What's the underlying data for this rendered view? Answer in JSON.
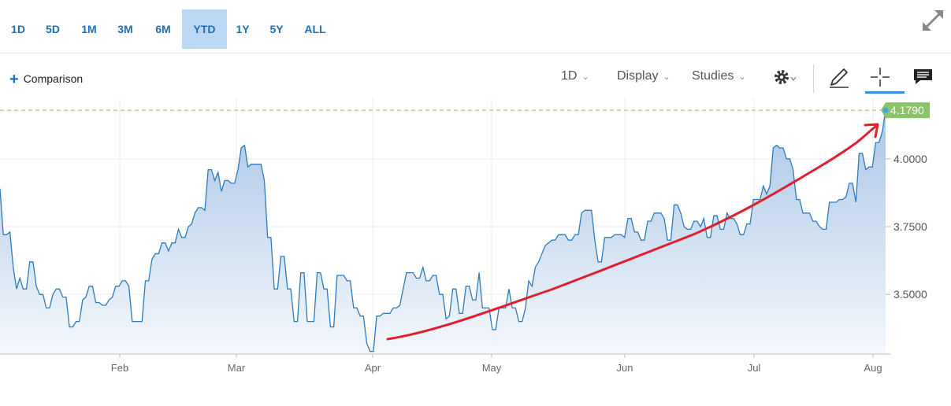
{
  "range_buttons": [
    {
      "label": "1D"
    },
    {
      "label": "5D"
    },
    {
      "label": "1M"
    },
    {
      "label": "3M"
    },
    {
      "label": "6M"
    },
    {
      "label": "YTD",
      "active": true
    },
    {
      "label": "1Y"
    },
    {
      "label": "5Y"
    },
    {
      "label": "ALL"
    }
  ],
  "toolbar": {
    "comparison_label": "Comparison",
    "interval_label": "1D",
    "display_label": "Display",
    "studies_label": "Studies"
  },
  "icons": {
    "expand": "expand-icon",
    "settings": "gear-icon",
    "draw": "pencil-icon",
    "crosshair": "crosshair-icon",
    "comments": "comment-icon"
  },
  "colors": {
    "accent": "#1f6fb2",
    "line": "#2f7ab8",
    "fill_top": "#a9c6e6",
    "fill_bottom": "#f4f8fc",
    "price_badge": "#8bc36b",
    "annotation": "#e0202e"
  },
  "chart_data": {
    "type": "area",
    "x_ticks": [
      "Feb",
      "Mar",
      "Apr",
      "May",
      "Jun",
      "Jul",
      "Aug"
    ],
    "y_ticks": [
      "4.0000",
      "3.7500",
      "3.5000"
    ],
    "ylim": [
      3.28,
      4.22
    ],
    "last_value_label": "4.1790",
    "last_value": 4.179,
    "series": [
      {
        "values": [
          3.89,
          3.72,
          3.72,
          3.73,
          3.6,
          3.52,
          3.56,
          3.52,
          3.52,
          3.62,
          3.62,
          3.53,
          3.5,
          3.5,
          3.45,
          3.45,
          3.5,
          3.52,
          3.52,
          3.49,
          3.49,
          3.38,
          3.38,
          3.4,
          3.4,
          3.48,
          3.49,
          3.53,
          3.53,
          3.47,
          3.47,
          3.46,
          3.46,
          3.48,
          3.49,
          3.53,
          3.53,
          3.55,
          3.55,
          3.53,
          3.4,
          3.4,
          3.4,
          3.4,
          3.55,
          3.55,
          3.63,
          3.65,
          3.65,
          3.69,
          3.69,
          3.66,
          3.69,
          3.69,
          3.74,
          3.71,
          3.71,
          3.75,
          3.76,
          3.8,
          3.82,
          3.82,
          3.81,
          3.96,
          3.96,
          3.92,
          3.95,
          3.88,
          3.92,
          3.92,
          3.91,
          3.91,
          3.96,
          4.04,
          4.05,
          3.97,
          3.98,
          3.98,
          3.98,
          3.98,
          3.92,
          3.71,
          3.71,
          3.52,
          3.52,
          3.64,
          3.64,
          3.52,
          3.52,
          3.4,
          3.4,
          3.58,
          3.58,
          3.4,
          3.4,
          3.4,
          3.58,
          3.58,
          3.52,
          3.52,
          3.38,
          3.38,
          3.57,
          3.57,
          3.57,
          3.55,
          3.55,
          3.45,
          3.45,
          3.42,
          3.42,
          3.32,
          3.29,
          3.29,
          3.42,
          3.42,
          3.43,
          3.43,
          3.43,
          3.45,
          3.45,
          3.46,
          3.52,
          3.58,
          3.58,
          3.58,
          3.56,
          3.56,
          3.6,
          3.55,
          3.55,
          3.57,
          3.57,
          3.5,
          3.5,
          3.41,
          3.42,
          3.52,
          3.52,
          3.43,
          3.43,
          3.53,
          3.53,
          3.48,
          3.48,
          3.58,
          3.45,
          3.45,
          3.45,
          3.37,
          3.37,
          3.45,
          3.45,
          3.45,
          3.52,
          3.45,
          3.45,
          3.4,
          3.4,
          3.45,
          3.55,
          3.53,
          3.6,
          3.62,
          3.65,
          3.68,
          3.69,
          3.7,
          3.7,
          3.72,
          3.72,
          3.72,
          3.7,
          3.7,
          3.72,
          3.72,
          3.8,
          3.81,
          3.81,
          3.81,
          3.7,
          3.62,
          3.62,
          3.71,
          3.71,
          3.71,
          3.72,
          3.72,
          3.72,
          3.71,
          3.78,
          3.78,
          3.73,
          3.73,
          3.7,
          3.7,
          3.77,
          3.77,
          3.8,
          3.8,
          3.8,
          3.78,
          3.7,
          3.7,
          3.83,
          3.83,
          3.8,
          3.75,
          3.74,
          3.74,
          3.77,
          3.77,
          3.75,
          3.78,
          3.71,
          3.71,
          3.79,
          3.79,
          3.74,
          3.74,
          3.8,
          3.78,
          3.78,
          3.76,
          3.72,
          3.72,
          3.76,
          3.76,
          3.85,
          3.85,
          3.85,
          3.9,
          3.87,
          3.9,
          4.04,
          4.05,
          4.04,
          4.04,
          4.0,
          4.0,
          3.96,
          3.85,
          3.85,
          3.8,
          3.8,
          3.8,
          3.77,
          3.77,
          3.75,
          3.74,
          3.74,
          3.84,
          3.84,
          3.84,
          3.85,
          3.85,
          3.86,
          3.91,
          3.91,
          3.84,
          4.02,
          4.02,
          3.96,
          3.97,
          3.97,
          4.06,
          4.06,
          4.1,
          4.18
        ]
      }
    ]
  },
  "annotation": {
    "type": "arrow",
    "color": "#e0202e"
  }
}
